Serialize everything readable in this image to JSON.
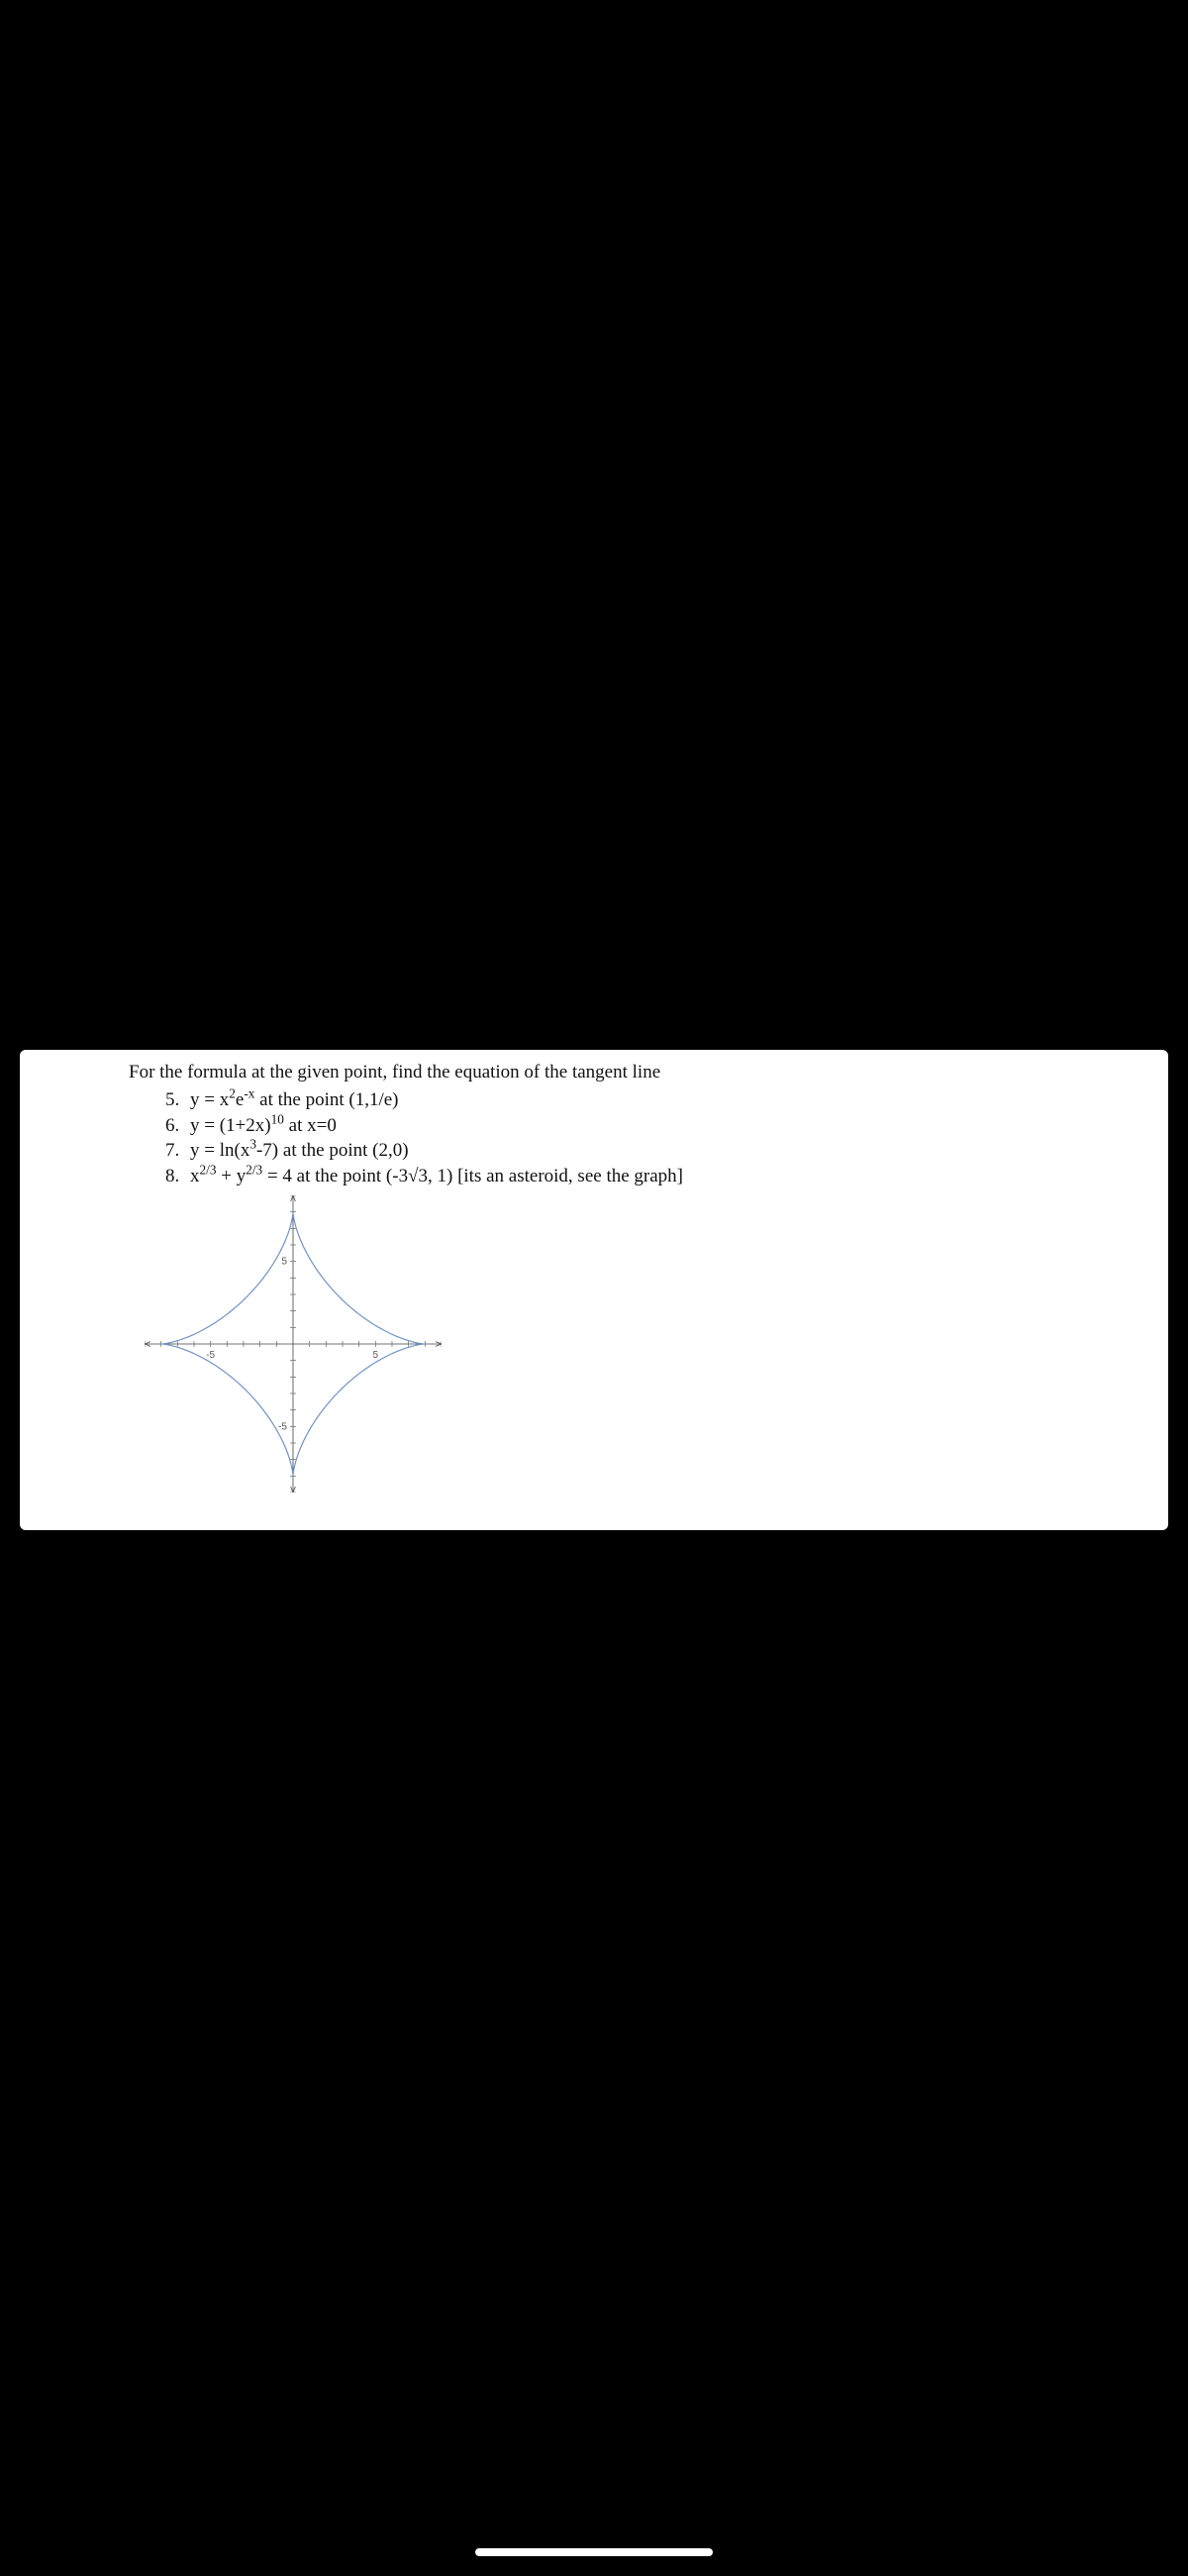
{
  "prompt": "For the formula at the given point, find the equation of the tangent line",
  "problems": {
    "start": 5,
    "items": [
      "y = x²e⁻ˣ at the point (1,1/e)",
      "y = (1+2x)¹⁰ at x=0",
      "y = ln(x³-7) at the point (2,0)",
      "x²ᐟ³ + y²ᐟ³ = 4 at the point (-3√3, 1) [its an asteroid, see the graph]"
    ]
  },
  "chart": {
    "type": "asteroid-curve",
    "equation": "x^(2/3)+y^(2/3)=4",
    "xlim": [
      -9,
      9
    ],
    "ylim": [
      -9,
      9
    ],
    "x_tick_labels": [
      -5,
      5
    ],
    "y_tick_labels": [
      -5,
      5
    ],
    "cusps": [
      [
        8,
        0
      ],
      [
        0,
        8
      ],
      [
        -8,
        0
      ],
      [
        0,
        -8
      ]
    ],
    "curve_color": "#6f93c7",
    "axis_color": "#444444",
    "tick_color": "#666666",
    "background_color": "#ffffff",
    "label_fontsize": 10,
    "curve_stroke_width": 1.2,
    "axis_stroke_width": 0.8,
    "tick_spacing": 1
  },
  "colors": {
    "page_bg": "#000000",
    "card_bg": "#ffffff",
    "text": "#111111",
    "home_indicator": "#ffffff"
  }
}
